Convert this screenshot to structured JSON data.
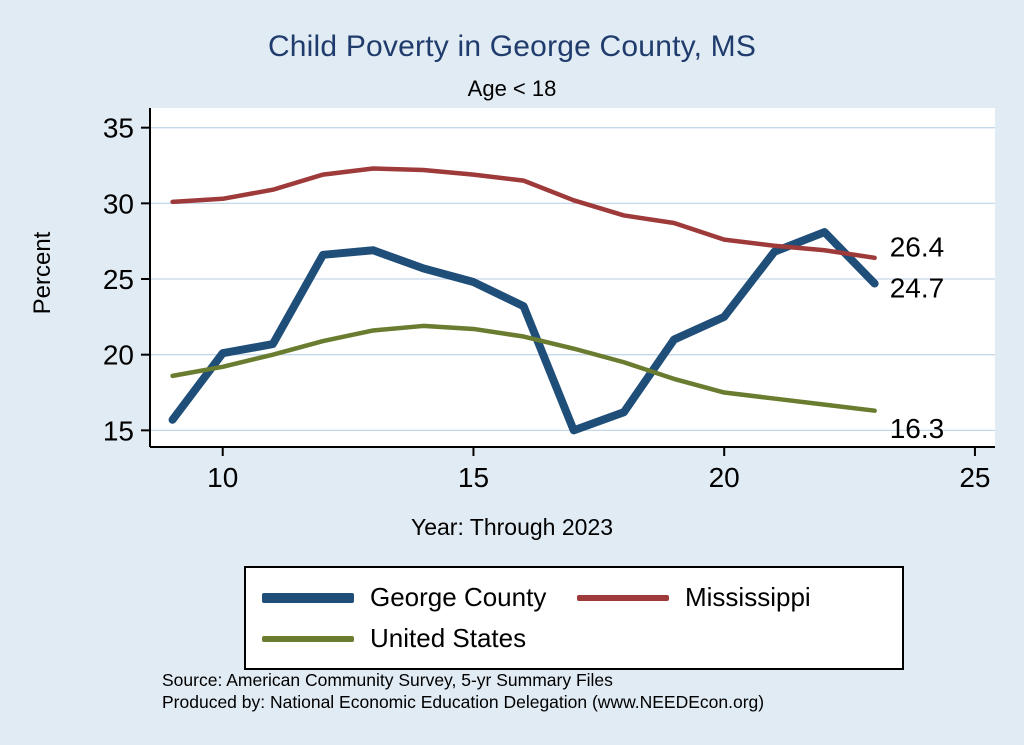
{
  "chart_data": {
    "type": "line",
    "title": "Child Poverty in George County, MS",
    "subtitle": "Age < 18",
    "xlabel": "Year: Through 2023",
    "ylabel": "Percent",
    "x": [
      9,
      10,
      11,
      12,
      13,
      14,
      15,
      16,
      17,
      18,
      19,
      20,
      21,
      22,
      23
    ],
    "series": [
      {
        "name": "George County",
        "color": "#1f4e79",
        "width": 8,
        "values": [
          15.7,
          20.1,
          20.7,
          26.6,
          26.9,
          25.7,
          24.8,
          23.2,
          15.0,
          16.2,
          21.0,
          22.5,
          26.8,
          28.1,
          24.7
        ]
      },
      {
        "name": "Mississippi",
        "color": "#9e3a3a",
        "width": 4.5,
        "values": [
          30.1,
          30.3,
          30.9,
          31.9,
          32.3,
          32.2,
          31.9,
          31.5,
          30.2,
          29.2,
          28.7,
          27.6,
          27.2,
          26.9,
          26.4
        ]
      },
      {
        "name": "United States",
        "color": "#697c2f",
        "width": 4.5,
        "values": [
          18.6,
          19.2,
          20.0,
          20.9,
          21.6,
          21.9,
          21.7,
          21.2,
          20.4,
          19.5,
          18.4,
          17.5,
          17.1,
          16.7,
          16.3
        ]
      }
    ],
    "xticks": [
      10,
      15,
      20,
      25
    ],
    "yticks": [
      15,
      20,
      25,
      30,
      35
    ],
    "xlim": [
      8.55,
      25.4
    ],
    "ylim": [
      13.9,
      36.3
    ],
    "grid": "horizontal",
    "legend_position": "bottom",
    "annotations": [
      {
        "label": "26.4",
        "x": 23.3,
        "y": 27.15
      },
      {
        "label": "24.7",
        "x": 23.3,
        "y": 24.45
      },
      {
        "label": "16.3",
        "x": 23.3,
        "y": 15.15
      }
    ]
  },
  "footer": {
    "source_line1": "Source: American Community Survey, 5-yr Summary Files",
    "source_line2": "Produced by: National Economic Education Delegation (www.NEEDEcon.org)"
  },
  "colors": {
    "background": "#e1ebf3",
    "plot_background": "#ffffff",
    "title": "#1f3c6d",
    "grid": "#c5d8ea",
    "axis": "#000000"
  }
}
